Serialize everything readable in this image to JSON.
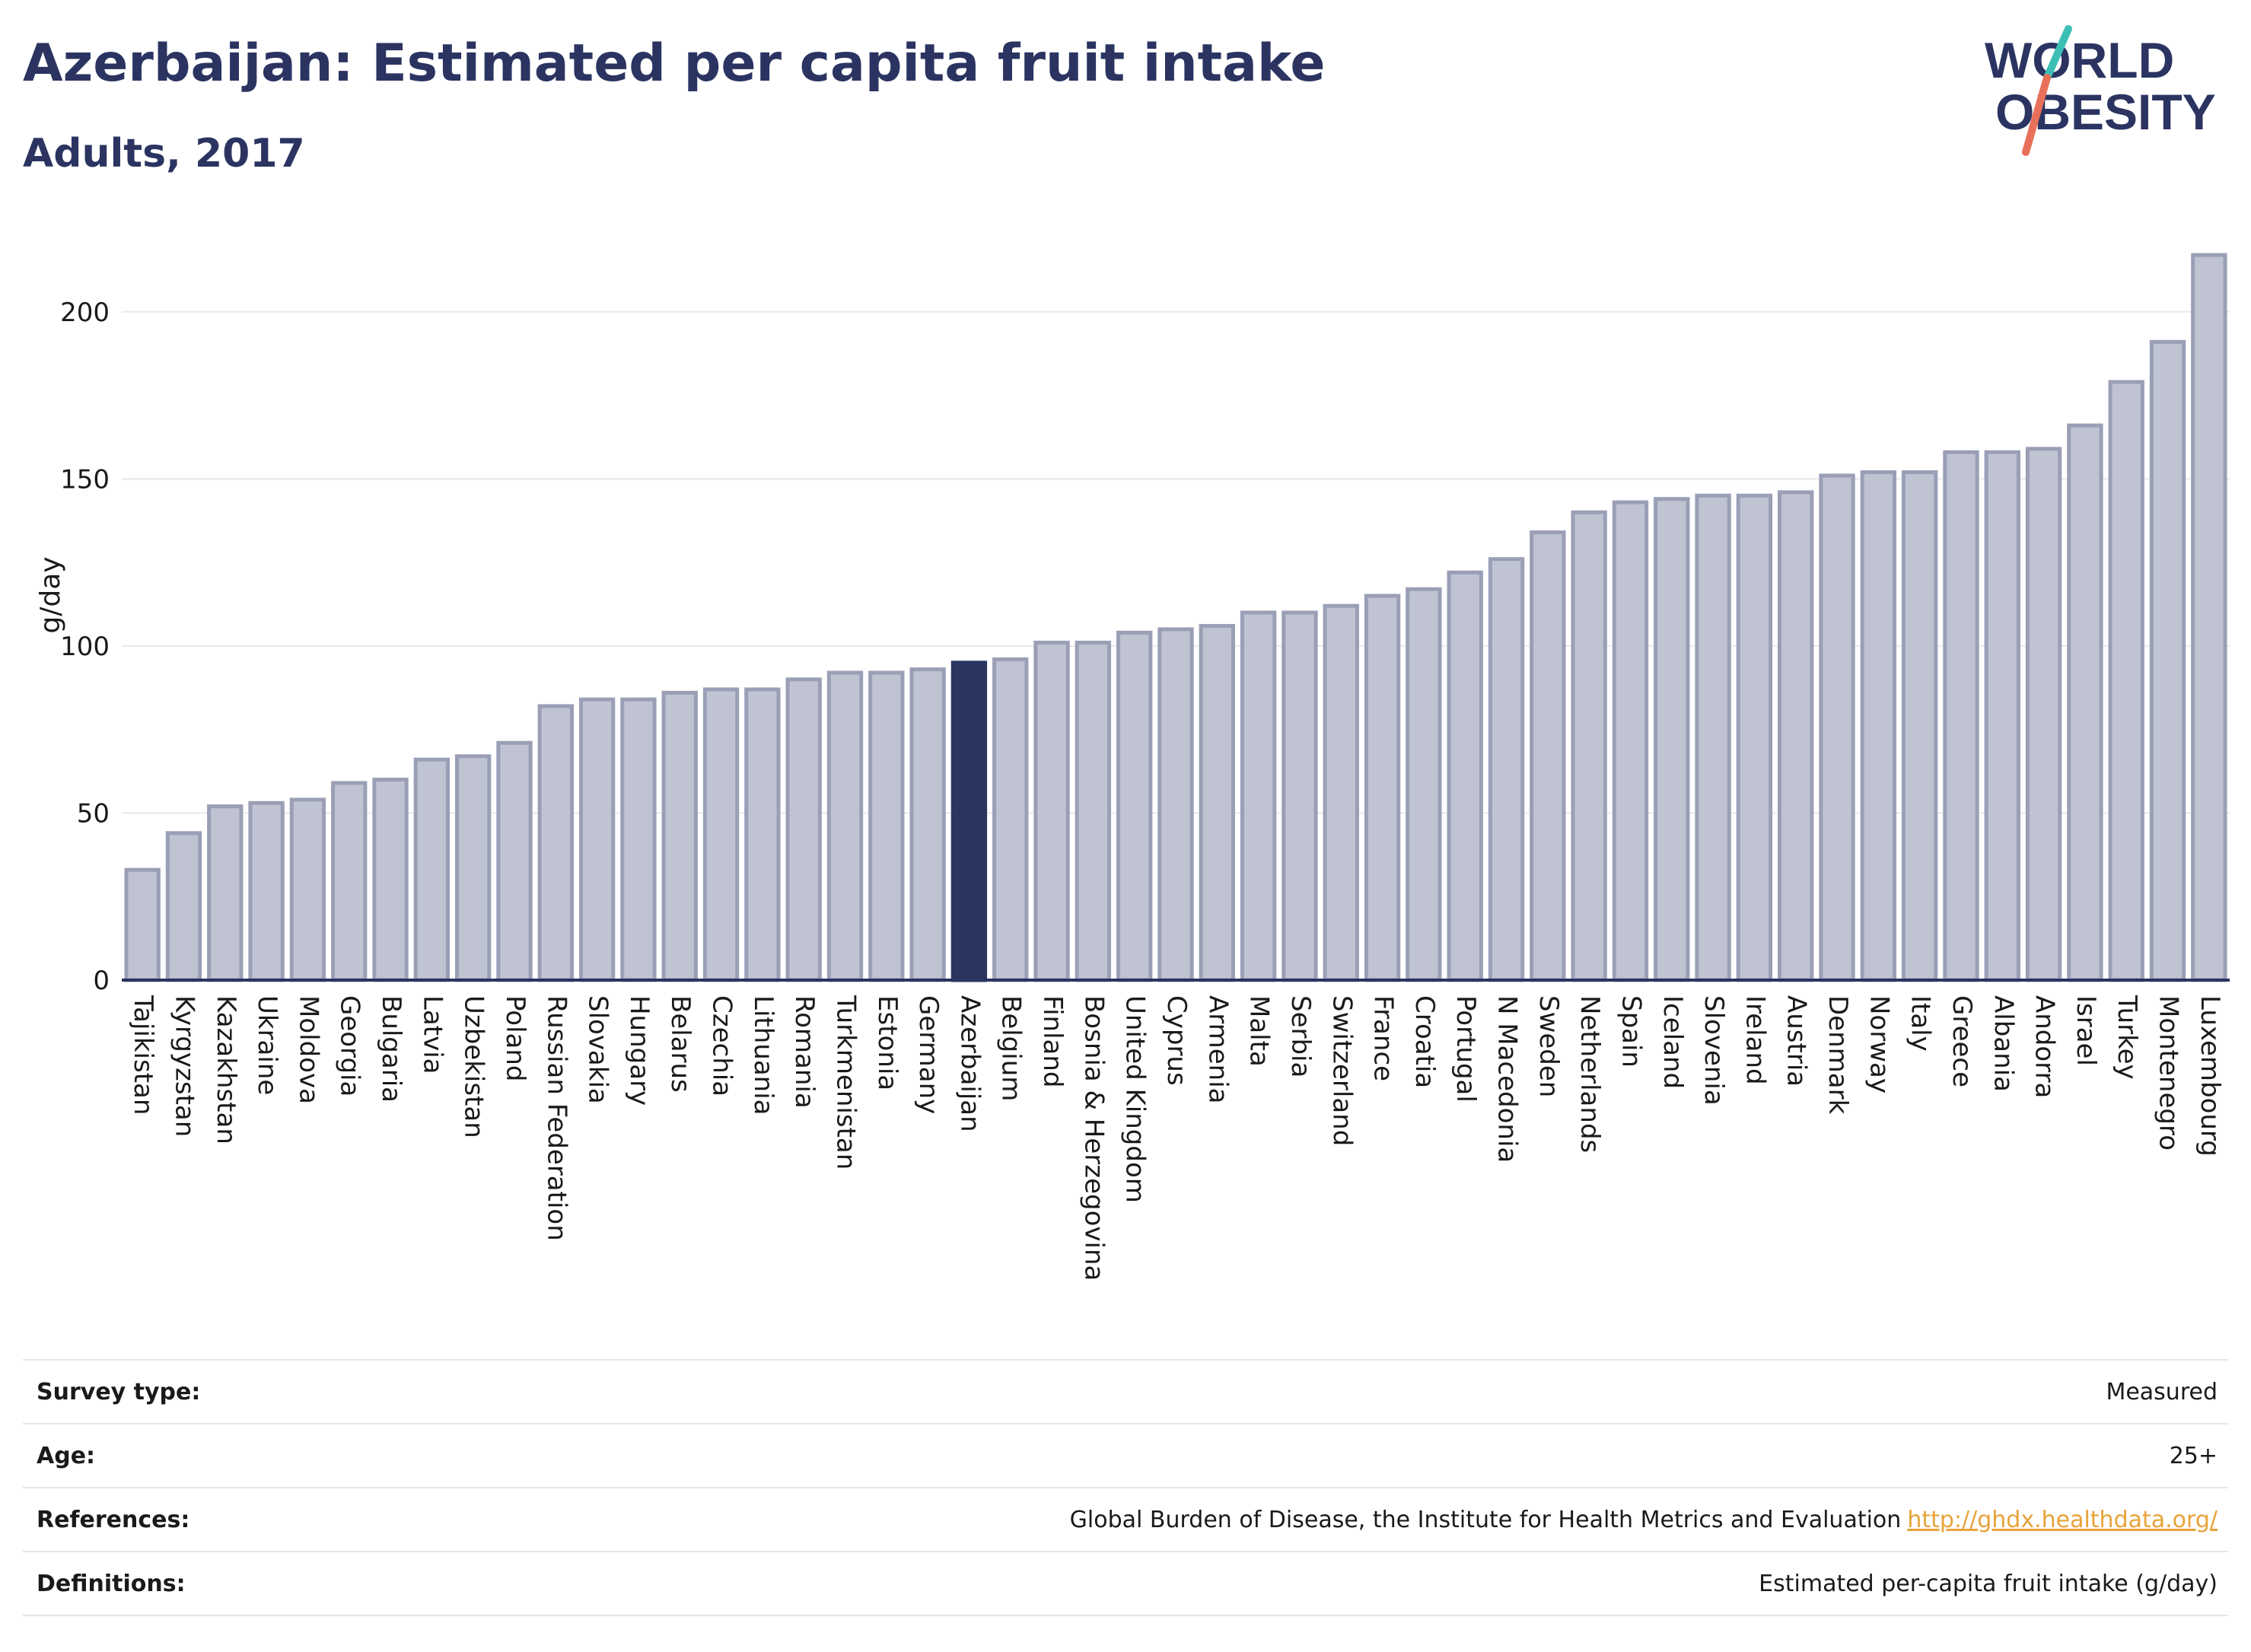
{
  "header": {
    "title": "Azerbaijan: Estimated per capita fruit intake",
    "subtitle": "Adults, 2017"
  },
  "logo": {
    "line1": "WORLD",
    "line2": "OBESITY",
    "colors": {
      "text": "#2b3461",
      "slash_teal": "#3bbfb5",
      "slash_coral": "#e8705a"
    }
  },
  "chart_data": {
    "type": "bar",
    "ylabel": "g/day",
    "xlabel": "",
    "ylim": [
      0,
      225
    ],
    "yticks": [
      0,
      50,
      100,
      150,
      200
    ],
    "grid": true,
    "highlight": "Azerbaijan",
    "colors": {
      "bar": "#bfc3d2",
      "bar_edge": "#9a9fb6",
      "highlight": "#2b3461",
      "axis": "#2b3461",
      "grid": "#e8e8ee"
    },
    "categories": [
      "Tajikistan",
      "Kyrgyzstan",
      "Kazakhstan",
      "Ukraine",
      "Moldova",
      "Georgia",
      "Bulgaria",
      "Latvia",
      "Uzbekistan",
      "Poland",
      "Russian Federation",
      "Slovakia",
      "Hungary",
      "Belarus",
      "Czechia",
      "Lithuania",
      "Romania",
      "Turkmenistan",
      "Estonia",
      "Germany",
      "Azerbaijan",
      "Belgium",
      "Finland",
      "Bosnia & Herzegovina",
      "United Kingdom",
      "Cyprus",
      "Armenia",
      "Malta",
      "Serbia",
      "Switzerland",
      "France",
      "Croatia",
      "Portugal",
      "N Macedonia",
      "Sweden",
      "Netherlands",
      "Spain",
      "Iceland",
      "Slovenia",
      "Ireland",
      "Austria",
      "Denmark",
      "Norway",
      "Italy",
      "Greece",
      "Albania",
      "Andorra",
      "Israel",
      "Turkey",
      "Montenegro",
      "Luxembourg"
    ],
    "values": [
      33,
      44,
      52,
      53,
      54,
      59,
      60,
      66,
      67,
      71,
      82,
      84,
      84,
      86,
      87,
      87,
      90,
      92,
      92,
      93,
      95,
      96,
      101,
      101,
      104,
      105,
      106,
      110,
      110,
      112,
      115,
      117,
      122,
      126,
      134,
      140,
      143,
      144,
      145,
      145,
      146,
      151,
      152,
      152,
      158,
      158,
      159,
      166,
      179,
      191,
      217
    ]
  },
  "meta": {
    "survey_type_label": "Survey type:",
    "survey_type_value": "Measured",
    "age_label": "Age:",
    "age_value": "25+",
    "references_label": "References:",
    "references_value": "Global Burden of Disease, the Institute for Health Metrics and Evaluation",
    "references_link": "http://ghdx.healthdata.org/",
    "definitions_label": "Definitions:",
    "definitions_value": "Estimated per-capita fruit intake (g/day)"
  }
}
